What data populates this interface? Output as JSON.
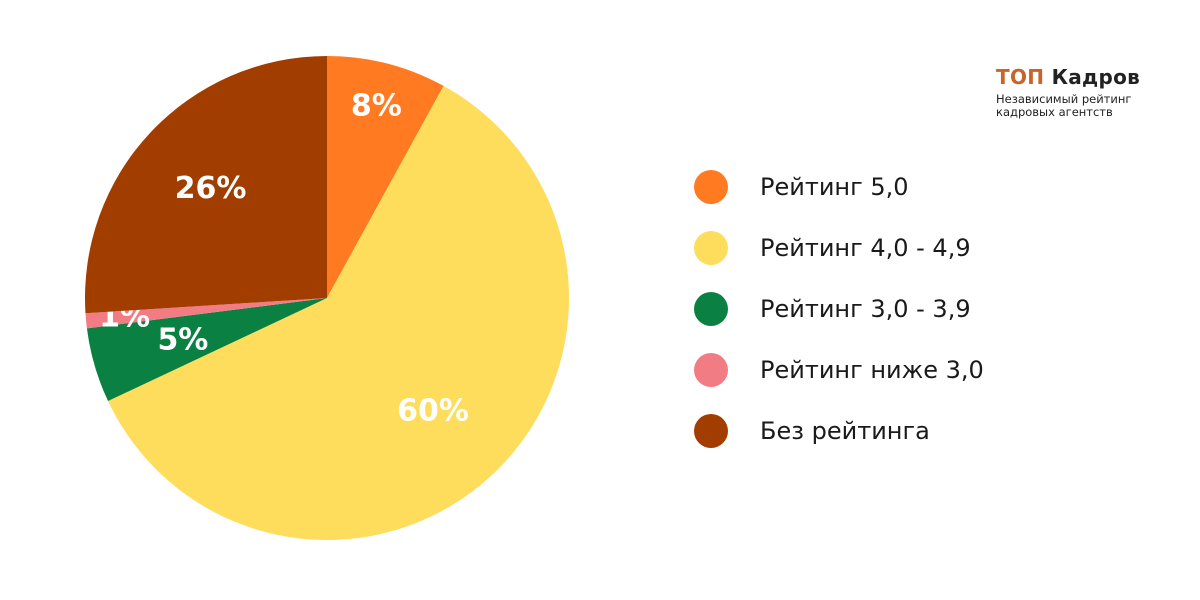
{
  "brand": {
    "title_part1": "ТОП",
    "title_part2": "Кадров",
    "subtitle_line1": "Независимый рейтинг",
    "subtitle_line2": "кадровых агентств"
  },
  "chart_data": {
    "type": "pie",
    "title": "",
    "slices": [
      {
        "label": "Рейтинг 5,0",
        "value": 8,
        "display": "8%",
        "color": "#ff7a21"
      },
      {
        "label": "Рейтинг 4,0 - 4,9",
        "value": 60,
        "display": "60%",
        "color": "#ffdd5c"
      },
      {
        "label": "Рейтинг 3,0 - 3,9",
        "value": 5,
        "display": "5%",
        "color": "#0b8043"
      },
      {
        "label": "Рейтинг ниже 3,0",
        "value": 1,
        "display": "1%",
        "color": "#f27c83"
      },
      {
        "label": "Без рейтинга",
        "value": 26,
        "display": "26%",
        "color": "#a23d00"
      }
    ],
    "legend_position": "right"
  }
}
